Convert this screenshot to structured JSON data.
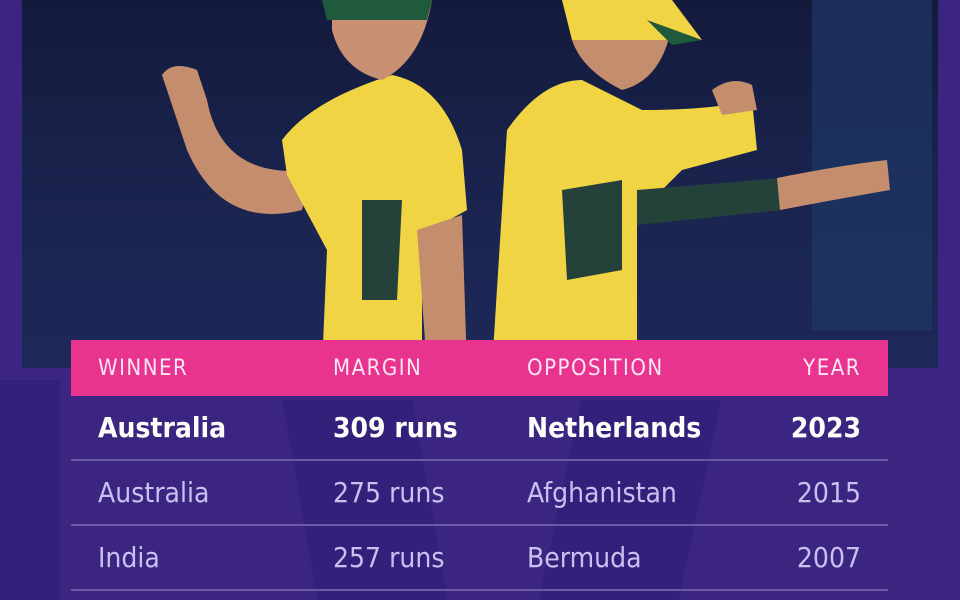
{
  "colors": {
    "background": "#3b2581",
    "header": "#e8348f",
    "jersey": "#f2d94a"
  },
  "photo": {
    "description_icon": "cricket-players-photo"
  },
  "table": {
    "headers": [
      "WINNER",
      "MARGIN",
      "OPPOSITION",
      "YEAR"
    ],
    "rows": [
      [
        "Australia",
        "309 runs",
        "Netherlands",
        "2023"
      ],
      [
        "Australia",
        "275 runs",
        "Afghanistan",
        "2015"
      ],
      [
        "India",
        "257 runs",
        "Bermuda",
        "2007"
      ]
    ]
  }
}
